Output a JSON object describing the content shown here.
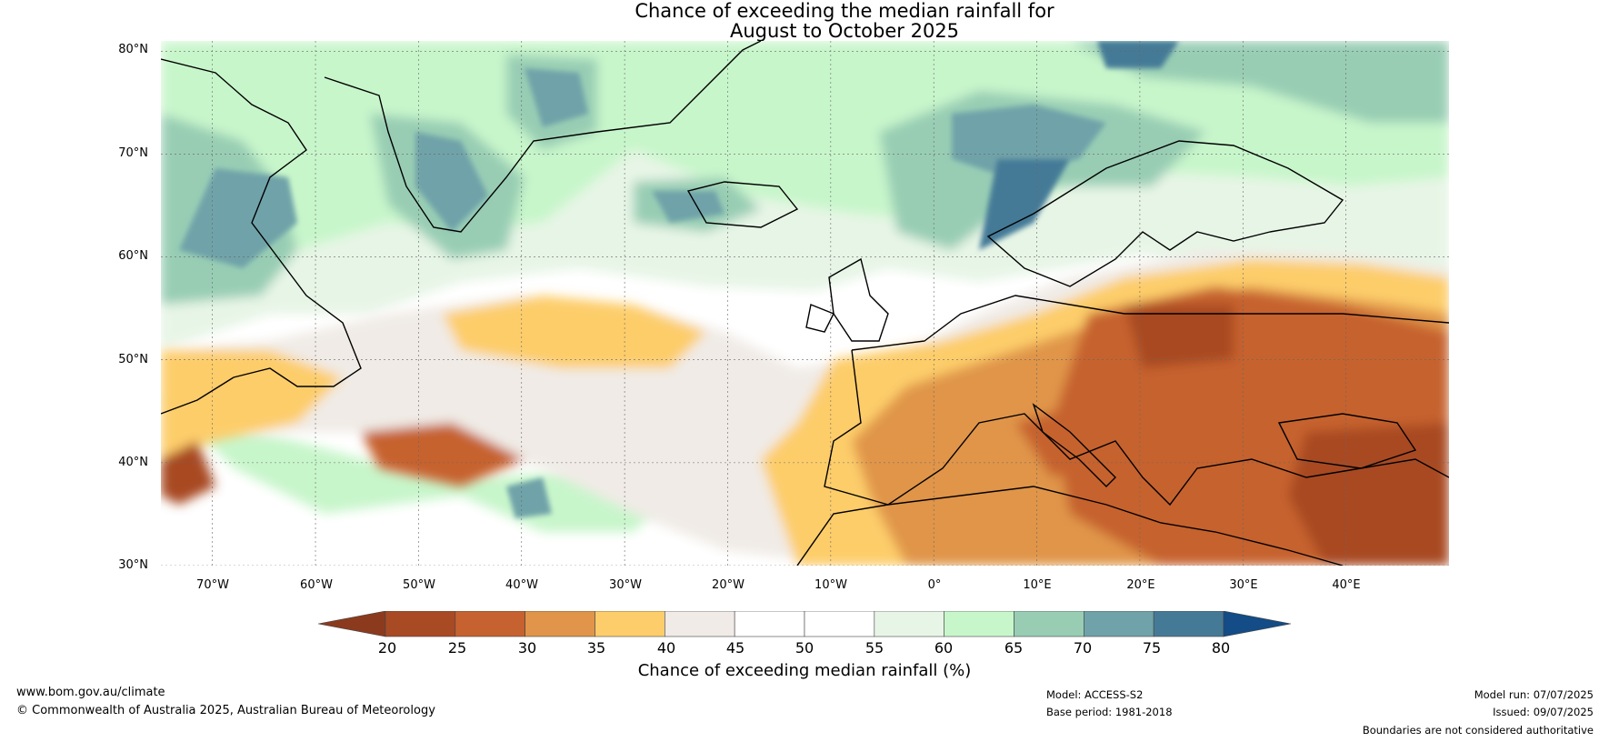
{
  "title": {
    "line1": "Chance of exceeding the median rainfall for",
    "line2": "August to October 2025"
  },
  "axes": {
    "lat_labels": [
      "80°N",
      "70°N",
      "60°N",
      "50°N",
      "40°N",
      "30°N"
    ],
    "lat_values": [
      80,
      70,
      60,
      50,
      40,
      30
    ],
    "lon_labels": [
      "70°W",
      "60°W",
      "50°W",
      "40°W",
      "30°W",
      "20°W",
      "10°W",
      "0°",
      "10°E",
      "20°E",
      "30°E",
      "40°E"
    ],
    "lon_values": [
      -70,
      -60,
      -50,
      -40,
      -30,
      -20,
      -10,
      0,
      10,
      20,
      30,
      40
    ],
    "lat_range": [
      30,
      81
    ],
    "lon_range": [
      -75,
      50
    ],
    "grid": true
  },
  "colorbar": {
    "ticks": [
      "20",
      "25",
      "30",
      "35",
      "40",
      "45",
      "50",
      "55",
      "60",
      "65",
      "70",
      "75",
      "80"
    ],
    "colors": [
      "#8b3a1e",
      "#a84a24",
      "#c6622f",
      "#e0954a",
      "#fdcd6b",
      "#f0ebe6",
      "#ffffff",
      "#ffffff",
      "#e7f5e6",
      "#c8f6cb",
      "#98cdb4",
      "#6fa3a9",
      "#457a97",
      "#134c86"
    ],
    "label": "Chance of exceeding median rainfall (%)"
  },
  "footer": {
    "website": "www.bom.gov.au/climate",
    "copyright": "© Commonwealth of Australia 2025, Australian Bureau of Meteorology",
    "model": "Model: ACCESS-S2",
    "base_period": "Base period: 1981-2018",
    "model_run": "Model run: 07/07/2025",
    "issued": "Issued: 09/07/2025",
    "disclaimer": "Boundaries are not considered authoritative"
  }
}
